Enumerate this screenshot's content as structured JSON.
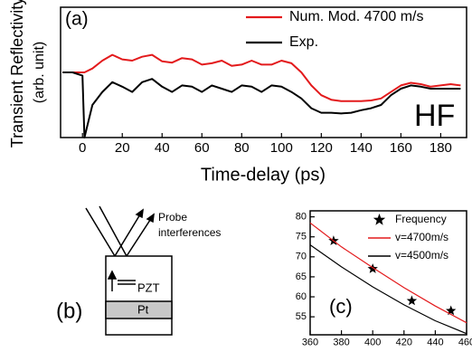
{
  "chart_data": [
    {
      "type": "line",
      "annotations": [
        "(a)",
        "HF"
      ],
      "ylabel": [
        "Transient Reflectivity",
        "(arb. unit)"
      ],
      "xlabel": "Time-delay (ps)",
      "xlim": [
        -11,
        193
      ],
      "ylim": [
        -1,
        1
      ],
      "xticks": [
        0,
        20,
        40,
        60,
        80,
        100,
        120,
        140,
        160,
        180
      ],
      "x": [
        -10,
        -5,
        0,
        1,
        5,
        10,
        15,
        20,
        25,
        30,
        35,
        40,
        45,
        50,
        55,
        60,
        65,
        70,
        75,
        80,
        85,
        90,
        95,
        100,
        105,
        110,
        115,
        120,
        125,
        130,
        135,
        140,
        145,
        150,
        155,
        160,
        165,
        170,
        175,
        180,
        185,
        190
      ],
      "series": [
        {
          "name": "Num. Mod. 4700 m/s",
          "color": "#e31a1c",
          "values": [
            0,
            0,
            0,
            0,
            0.06,
            0.18,
            0.27,
            0.2,
            0.18,
            0.24,
            0.27,
            0.17,
            0.15,
            0.22,
            0.2,
            0.12,
            0.14,
            0.18,
            0.1,
            0.12,
            0.18,
            0.12,
            0.12,
            0.18,
            0.14,
            0.0,
            -0.2,
            -0.35,
            -0.42,
            -0.44,
            -0.44,
            -0.44,
            -0.43,
            -0.4,
            -0.3,
            -0.2,
            -0.16,
            -0.18,
            -0.22,
            -0.2,
            -0.18,
            -0.2
          ]
        },
        {
          "name": "Exp.",
          "color": "#000000",
          "values": [
            0,
            0,
            -0.05,
            -1,
            -0.5,
            -0.3,
            -0.15,
            -0.22,
            -0.3,
            -0.15,
            -0.1,
            -0.22,
            -0.3,
            -0.2,
            -0.22,
            -0.3,
            -0.2,
            -0.25,
            -0.3,
            -0.2,
            -0.22,
            -0.3,
            -0.2,
            -0.22,
            -0.3,
            -0.4,
            -0.55,
            -0.62,
            -0.62,
            -0.63,
            -0.62,
            -0.58,
            -0.55,
            -0.5,
            -0.35,
            -0.25,
            -0.2,
            -0.22,
            -0.25,
            -0.25,
            -0.25,
            -0.25
          ]
        }
      ]
    },
    {
      "type": "scatter",
      "annotations": [
        "(c)"
      ],
      "xlim": [
        360,
        460
      ],
      "ylim": [
        50.5,
        81.5
      ],
      "xticks": [
        360,
        380,
        400,
        420,
        440,
        460
      ],
      "yticks": [
        55,
        60,
        65,
        70,
        75,
        80
      ],
      "series": [
        {
          "name": "Frequency",
          "color": "#000000",
          "kind": "scatter",
          "x": [
            375,
            400,
            425,
            450
          ],
          "values": [
            74,
            67,
            59,
            56.5
          ]
        },
        {
          "name": "v=4700m/s",
          "color": "#e31a1c",
          "kind": "line",
          "x": [
            360,
            380,
            400,
            420,
            440,
            460
          ],
          "values": [
            78.5,
            72.5,
            67.3,
            62.3,
            57.7,
            53.5
          ]
        },
        {
          "name": "v=4500m/s",
          "color": "#000000",
          "kind": "line",
          "x": [
            360,
            380,
            400,
            420,
            440,
            460
          ],
          "values": [
            73,
            67.5,
            62.5,
            58,
            54,
            50.8
          ]
        }
      ]
    }
  ],
  "diagram": {
    "label": "(b)",
    "probe": [
      "Probe",
      "interferences"
    ],
    "layers": [
      "PZT",
      "Pt"
    ]
  }
}
